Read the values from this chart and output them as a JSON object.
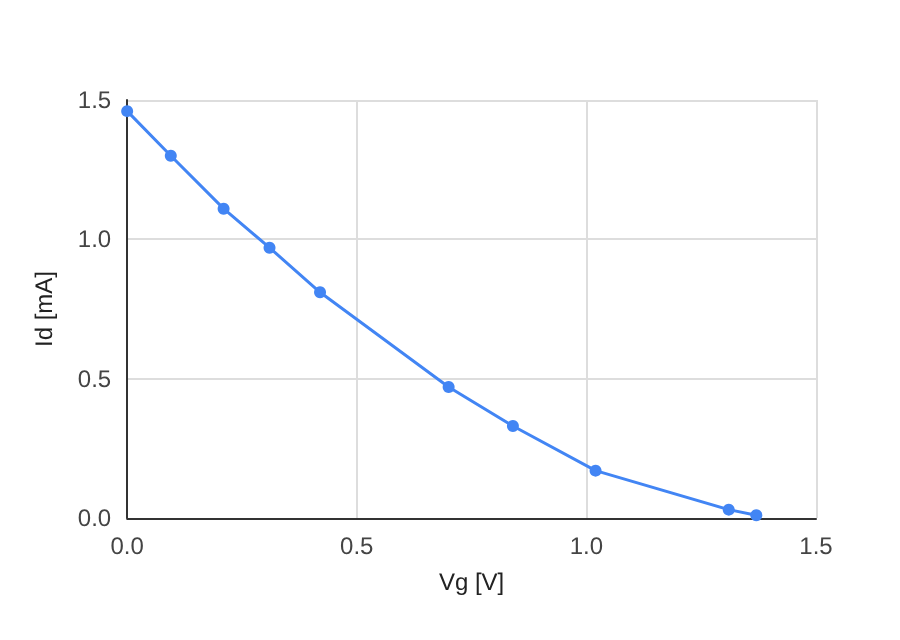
{
  "chart_data": {
    "type": "line",
    "xlabel": "Vg [V]",
    "ylabel": "Id [mA]",
    "x": [
      0,
      0.095,
      0.21,
      0.31,
      0.42,
      0.7,
      0.84,
      1.02,
      1.31,
      1.37
    ],
    "series": [
      {
        "color": "#4285f4",
        "values": [
          1.46,
          1.3,
          1.11,
          0.97,
          0.81,
          0.47,
          0.33,
          0.17,
          0.03,
          0.01
        ]
      }
    ],
    "xlim": [
      0,
      1.5
    ],
    "ylim": [
      0,
      1.5
    ],
    "xticks": [
      {
        "value": 0,
        "label": "0.0"
      },
      {
        "value": 0.5,
        "label": "0.5"
      },
      {
        "value": 1,
        "label": "1.0"
      },
      {
        "value": 1.5,
        "label": "1.5"
      }
    ],
    "yticks": [
      {
        "value": 0,
        "label": "0.0"
      },
      {
        "value": 0.5,
        "label": "0.5"
      },
      {
        "value": 1,
        "label": "1.0"
      },
      {
        "value": 1.5,
        "label": "1.5"
      }
    ],
    "grid": true,
    "marker": "circle",
    "line_style": "solid"
  }
}
